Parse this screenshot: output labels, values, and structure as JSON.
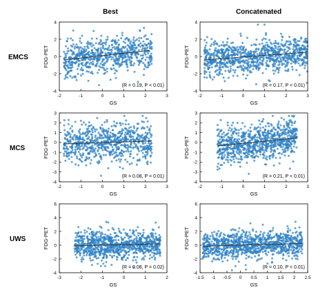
{
  "columns": [
    "Best",
    "Concatenated"
  ],
  "rows": [
    "EMCS",
    "MCS",
    "UWS"
  ],
  "colors": {
    "point": "#3a8fd4",
    "fit": "#333333",
    "axis": "#000000"
  },
  "chart_data": [
    {
      "type": "scatter",
      "row": "EMCS",
      "column": "Best",
      "xlabel": "GS",
      "ylabel": "FDG-PET",
      "xlim": [
        -2,
        3
      ],
      "ylim": [
        -4,
        4
      ],
      "xticks": [
        "-2",
        "-1",
        "0",
        "1",
        "2",
        "3"
      ],
      "yticks": [
        "-4",
        "-2",
        "0",
        "2",
        "4"
      ],
      "annotation": "(R = 0.19, P < 0.01)",
      "fit_line": {
        "x": [
          -1.8,
          2.2
        ],
        "y": [
          -0.4,
          0.7
        ]
      },
      "x_range": [
        -1.8,
        2.3
      ],
      "y_spread": 1.0,
      "n_points": 700
    },
    {
      "type": "scatter",
      "row": "EMCS",
      "column": "Concatenated",
      "xlabel": "GS",
      "ylabel": "FDG-PET",
      "xlim": [
        -2,
        3
      ],
      "ylim": [
        -4,
        4
      ],
      "xticks": [
        "-2",
        "-1",
        "0",
        "1",
        "2",
        "3"
      ],
      "yticks": [
        "-4",
        "-2",
        "0",
        "2",
        "4"
      ],
      "annotation": "(R = 0.17, P < 0.01)",
      "fit_line": {
        "x": [
          -1.8,
          3.0
        ],
        "y": [
          -0.4,
          0.5
        ]
      },
      "x_range": [
        -1.8,
        3.0
      ],
      "y_spread": 1.0,
      "n_points": 900
    },
    {
      "type": "scatter",
      "row": "MCS",
      "column": "Best",
      "xlabel": "GS",
      "ylabel": "FDG-PET",
      "xlim": [
        -2,
        3
      ],
      "ylim": [
        -4,
        3
      ],
      "xticks": [
        "-2",
        "-1",
        "0",
        "1",
        "2",
        "3"
      ],
      "yticks": [
        "-4",
        "-3",
        "-2",
        "-1",
        "0",
        "1",
        "2",
        "3"
      ],
      "annotation": "(R = 0.08, P = 0.01)",
      "fit_line": {
        "x": [
          -1.8,
          2.3
        ],
        "y": [
          -0.15,
          0.15
        ]
      },
      "x_range": [
        -1.8,
        2.3
      ],
      "y_spread": 1.0,
      "n_points": 750
    },
    {
      "type": "scatter",
      "row": "MCS",
      "column": "Concatenated",
      "xlabel": "GS",
      "ylabel": "FDG-PET",
      "xlim": [
        -2,
        3
      ],
      "ylim": [
        -4,
        3
      ],
      "xticks": [
        "-2",
        "-1",
        "0",
        "1",
        "2",
        "3"
      ],
      "yticks": [
        "-4",
        "-3",
        "-2",
        "-1",
        "0",
        "1",
        "2",
        "3"
      ],
      "annotation": "(R = 0.21, P < 0.01)",
      "fit_line": {
        "x": [
          -1.2,
          2.5
        ],
        "y": [
          -0.35,
          0.45
        ]
      },
      "x_range": [
        -1.2,
        2.5
      ],
      "y_spread": 1.0,
      "n_points": 850
    },
    {
      "type": "scatter",
      "row": "UWS",
      "column": "Best",
      "xlabel": "GS",
      "ylabel": "FDG-PET",
      "xlim": [
        -3,
        2
      ],
      "ylim": [
        -4,
        6
      ],
      "xticks": [
        "-3",
        "-2",
        "-1",
        "0",
        "1",
        "2"
      ],
      "yticks": [
        "-4",
        "-2",
        "0",
        "2",
        "4",
        "6"
      ],
      "annotation": "(R = 0.08, P = 0.02)",
      "fit_line": {
        "x": [
          -2.3,
          1.7
        ],
        "y": [
          -0.1,
          0.2
        ]
      },
      "x_range": [
        -2.3,
        1.7
      ],
      "y_spread": 1.0,
      "n_points": 900
    },
    {
      "type": "scatter",
      "row": "UWS",
      "column": "Concatenated",
      "xlabel": "GS",
      "ylabel": "FDG-PET",
      "xlim": [
        -1.5,
        2.5
      ],
      "ylim": [
        -4,
        6
      ],
      "xticks": [
        "-1.5",
        "-1",
        "-0.5",
        "0",
        "0.5",
        "1",
        "1.5",
        "2",
        "2.5"
      ],
      "yticks": [
        "-4",
        "-2",
        "0",
        "2",
        "4",
        "6"
      ],
      "annotation": "(R = 0.10, P < 0.01)",
      "fit_line": {
        "x": [
          -1.4,
          2.3
        ],
        "y": [
          -0.15,
          0.25
        ]
      },
      "x_range": [
        -1.4,
        2.3
      ],
      "y_spread": 1.0,
      "n_points": 1000
    }
  ]
}
